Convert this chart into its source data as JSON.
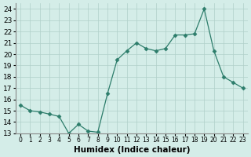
{
  "x": [
    0,
    1,
    2,
    3,
    4,
    5,
    6,
    7,
    8,
    9,
    10,
    11,
    12,
    13,
    14,
    15,
    16,
    17,
    18,
    19,
    20,
    21,
    22,
    23
  ],
  "y": [
    15.5,
    15.0,
    14.9,
    14.7,
    14.5,
    13.0,
    13.8,
    13.2,
    13.1,
    16.5,
    19.5,
    20.3,
    21.0,
    20.5,
    20.3,
    20.5,
    21.7,
    21.7,
    21.8,
    24.0,
    20.3,
    18.0,
    17.5,
    17.0
  ],
  "xlabel": "Humidex (Indice chaleur)",
  "ylim": [
    13,
    24.5
  ],
  "xlim": [
    -0.5,
    23.5
  ],
  "yticks": [
    13,
    14,
    15,
    16,
    17,
    18,
    19,
    20,
    21,
    22,
    23,
    24
  ],
  "xticks": [
    0,
    1,
    2,
    3,
    4,
    5,
    6,
    7,
    8,
    9,
    10,
    11,
    12,
    13,
    14,
    15,
    16,
    17,
    18,
    19,
    20,
    21,
    22,
    23
  ],
  "line_color": "#2d7d6b",
  "marker": "D",
  "marker_size": 2.5,
  "bg_color": "#d4ede8",
  "grid_color": "#b0cfc9",
  "tick_fontsize": 6,
  "xlabel_fontsize": 7.5
}
